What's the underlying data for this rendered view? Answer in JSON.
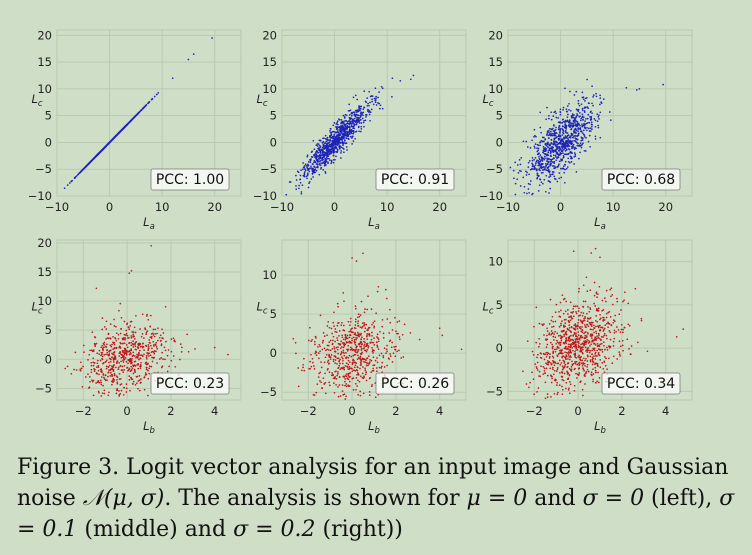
{
  "colors": {
    "blue": "#1f23b8",
    "red": "#c0171c",
    "grid": "#b9c9b2",
    "background": "#cfdfc7"
  },
  "chart_data": [
    {
      "type": "scatter",
      "position": "top-left",
      "color": "blue",
      "xlabel": "La",
      "ylabel": "Lc",
      "xlim": [
        -10,
        25
      ],
      "ylim": [
        -10,
        21
      ],
      "xticks": [
        -10,
        0,
        10,
        20
      ],
      "yticks": [
        -10,
        -5,
        0,
        5,
        10,
        15,
        20
      ],
      "pcc_label": "PCC: 1.00",
      "pcc": 1.0,
      "cloud": {
        "n": 700,
        "mx": 0,
        "my": 0,
        "sx": 3.2,
        "sy": 3.2,
        "rho": 1.0,
        "seed": 11
      },
      "outliers": [
        [
          8,
          8
        ],
        [
          9,
          9
        ],
        [
          12,
          12
        ],
        [
          15,
          15.5
        ],
        [
          16,
          16.5
        ],
        [
          19.5,
          19.5
        ]
      ]
    },
    {
      "type": "scatter",
      "position": "top-middle",
      "color": "blue",
      "xlabel": "La",
      "ylabel": "Lc",
      "xlim": [
        -10,
        25
      ],
      "ylim": [
        -10,
        21
      ],
      "xticks": [
        -10,
        0,
        10,
        20
      ],
      "yticks": [
        -10,
        -5,
        0,
        5,
        10,
        15,
        20
      ],
      "pcc_label": "PCC: 0.91",
      "pcc": 0.91,
      "cloud": {
        "n": 900,
        "mx": 0,
        "my": 0,
        "sx": 3.2,
        "sy": 3.5,
        "rho": 0.91,
        "seed": 23
      },
      "outliers": [
        [
          11,
          12
        ],
        [
          12.5,
          11.5
        ],
        [
          15,
          12.5
        ],
        [
          14.5,
          11.8
        ],
        [
          8,
          7
        ]
      ]
    },
    {
      "type": "scatter",
      "position": "top-right",
      "color": "blue",
      "xlabel": "La",
      "ylabel": "Lc",
      "xlim": [
        -10,
        25
      ],
      "ylim": [
        -10,
        21
      ],
      "xticks": [
        -10,
        0,
        10,
        20
      ],
      "yticks": [
        -10,
        -5,
        0,
        5,
        10,
        15,
        20
      ],
      "pcc_label": "PCC: 0.68",
      "pcc": 0.68,
      "cloud": {
        "n": 900,
        "mx": 0,
        "my": 0,
        "sx": 3.3,
        "sy": 3.8,
        "rho": 0.68,
        "seed": 37
      },
      "outliers": [
        [
          6,
          10.5
        ],
        [
          12.5,
          10.2
        ],
        [
          15,
          10
        ],
        [
          14.5,
          9.8
        ],
        [
          19.5,
          10.8
        ],
        [
          3,
          9.5
        ]
      ]
    },
    {
      "type": "scatter",
      "position": "bottom-left",
      "color": "red",
      "xlabel": "Lb",
      "ylabel": "Lc",
      "xlim": [
        -3.2,
        5.2
      ],
      "ylim": [
        -7,
        20.5
      ],
      "xticks": [
        -2,
        0,
        2,
        4
      ],
      "yticks": [
        -5,
        0,
        5,
        10,
        15,
        20
      ],
      "pcc_label": "PCC: 0.23",
      "pcc": 0.23,
      "cloud": {
        "n": 650,
        "mx": -0.1,
        "my": 0,
        "sx": 1.0,
        "sy": 3.0,
        "rho": 0.23,
        "seed": 51
      },
      "outliers": [
        [
          1.1,
          19.5
        ],
        [
          0.2,
          15.2
        ],
        [
          0.1,
          14.8
        ],
        [
          -1.4,
          12.2
        ],
        [
          4,
          2
        ],
        [
          4.6,
          0.8
        ]
      ]
    },
    {
      "type": "scatter",
      "position": "bottom-middle",
      "color": "red",
      "xlabel": "Lb",
      "ylabel": "Lc",
      "xlim": [
        -3.2,
        5.2
      ],
      "ylim": [
        -6,
        14.5
      ],
      "xticks": [
        -2,
        0,
        2,
        4
      ],
      "yticks": [
        -5,
        0,
        5,
        10
      ],
      "pcc_label": "PCC: 0.26",
      "pcc": 0.26,
      "cloud": {
        "n": 650,
        "mx": 0,
        "my": 0,
        "sx": 1.0,
        "sy": 2.6,
        "rho": 0.26,
        "seed": 67
      },
      "outliers": [
        [
          0,
          12.2
        ],
        [
          0.5,
          12.8
        ],
        [
          0.2,
          11.8
        ],
        [
          4,
          3.2
        ],
        [
          5,
          0.5
        ],
        [
          1.2,
          8.5
        ]
      ]
    },
    {
      "type": "scatter",
      "position": "bottom-right",
      "color": "red",
      "xlabel": "Lb",
      "ylabel": "Lc",
      "xlim": [
        -3.2,
        5.2
      ],
      "ylim": [
        -6,
        12.5
      ],
      "xticks": [
        -2,
        0,
        2,
        4
      ],
      "yticks": [
        -5,
        0,
        5,
        10
      ],
      "pcc_label": "PCC: 0.34",
      "pcc": 0.34,
      "cloud": {
        "n": 900,
        "mx": 0,
        "my": 0.5,
        "sx": 1.0,
        "sy": 2.8,
        "rho": 0.34,
        "seed": 83
      },
      "outliers": [
        [
          0.8,
          11.5
        ],
        [
          0.6,
          11
        ],
        [
          1.0,
          10.5
        ],
        [
          -0.2,
          11.2
        ],
        [
          4.5,
          1.3
        ],
        [
          4.8,
          2.2
        ]
      ]
    }
  ],
  "caption": {
    "part1": "Figure 3. Logit vector analysis for an input image and Gaussian noise ",
    "dist": "𝒩(μ, σ)",
    "part2": ". The analysis is shown for ",
    "cond1": "μ = 0",
    "part3": " and ",
    "cond2": "σ = 0",
    "part4": " (left), ",
    "cond3": "σ = 0.1",
    "part5": " (middle) and ",
    "cond4": "σ = 0.2",
    "part6": " (right))"
  }
}
